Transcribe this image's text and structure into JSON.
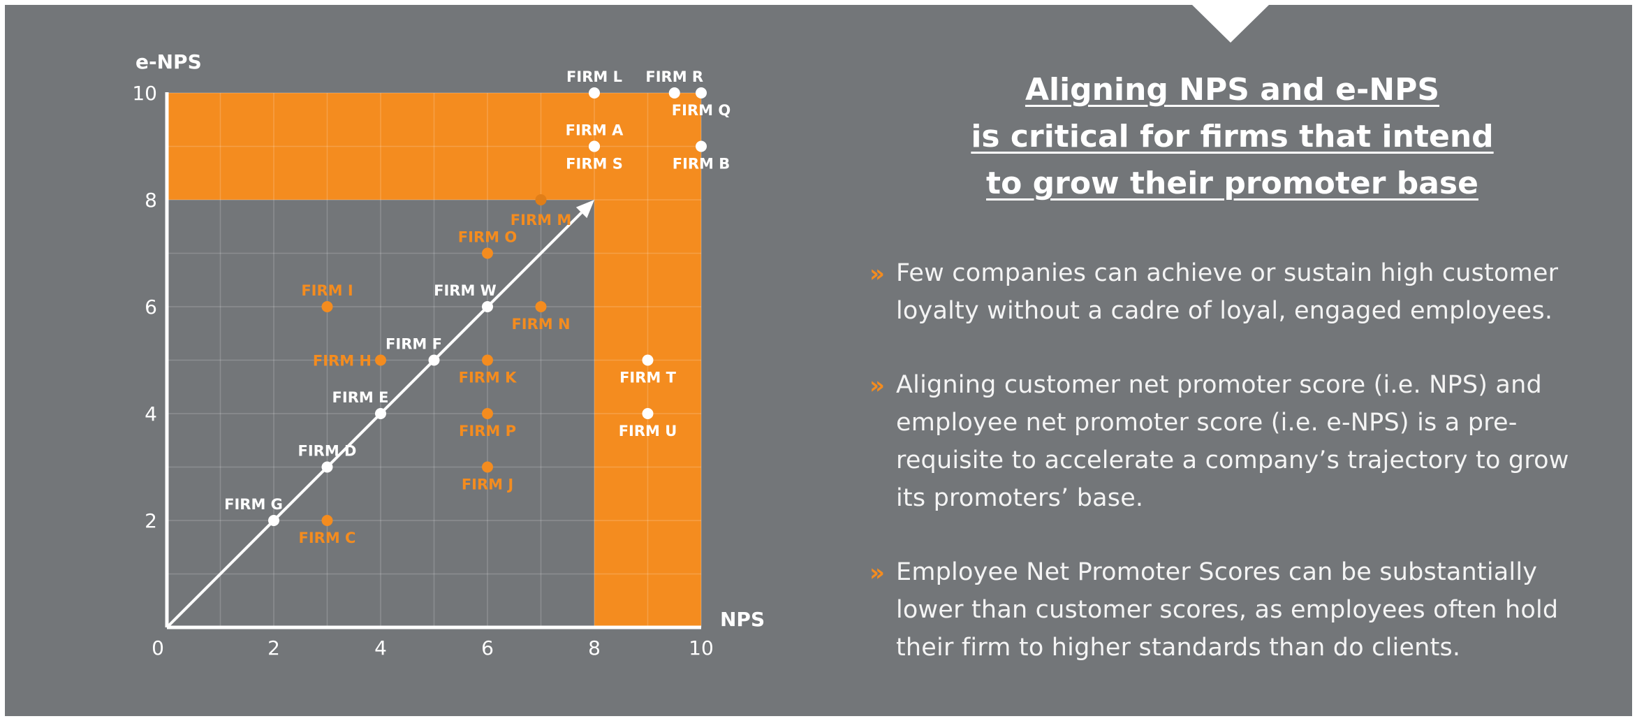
{
  "colors": {
    "background": "#737679",
    "accent": "#f48c1f",
    "point_aligned": "#ffffff",
    "point_misaligned": "#f48c1f"
  },
  "title": {
    "lines": [
      "Aligning NPS and e-NPS",
      "is critical for firms that intend",
      "to grow their promoter base"
    ]
  },
  "bullets": [
    {
      "icon": "double-chevron-right-icon",
      "text": "Few companies can achieve or sustain high customer loyalty without a cadre of loyal, engaged employees."
    },
    {
      "icon": "double-chevron-right-icon",
      "text": "Aligning customer net promoter score (i.e. NPS) and employee net promoter score (i.e. e-NPS) is a pre-requisite to accelerate a company’s trajectory to grow its promoters’ base."
    },
    {
      "icon": "double-chevron-right-icon",
      "text": "Employee Net Promoter Scores can be substantially lower than customer scores, as employees often hold their firm to higher standards than do clients."
    }
  ],
  "chart_data": {
    "type": "scatter",
    "xlabel": "NPS",
    "ylabel": "e-NPS",
    "xlim": [
      0,
      10
    ],
    "ylim": [
      0,
      10
    ],
    "x_ticks": [
      0,
      2,
      4,
      6,
      8,
      10
    ],
    "y_ticks": [
      2,
      4,
      6,
      8,
      10
    ],
    "origin_label": "0",
    "grid": true,
    "highlight_threshold": 8,
    "diagonal_arrow": {
      "from": [
        0,
        0
      ],
      "to": [
        8,
        8
      ]
    },
    "series": [
      {
        "color": "#ffffff",
        "points": [
          {
            "label": "FIRM G",
            "x": 2,
            "y": 2
          },
          {
            "label": "FIRM D",
            "x": 3,
            "y": 3
          },
          {
            "label": "FIRM E",
            "x": 4,
            "y": 4
          },
          {
            "label": "FIRM F",
            "x": 5,
            "y": 5
          },
          {
            "label": "FIRM W",
            "x": 6,
            "y": 6
          },
          {
            "label": "FIRM L",
            "x": 8,
            "y": 10
          },
          {
            "label": "FIRM R",
            "x": 9.5,
            "y": 10
          },
          {
            "label": "FIRM Q",
            "x": 10,
            "y": 10
          },
          {
            "label": "FIRM A",
            "x": 8,
            "y": 9
          },
          {
            "label": "FIRM S",
            "x": 8,
            "y": 9
          },
          {
            "label": "FIRM B",
            "x": 10,
            "y": 9
          },
          {
            "label": "FIRM T",
            "x": 9,
            "y": 5
          },
          {
            "label": "FIRM U",
            "x": 9,
            "y": 4
          }
        ]
      },
      {
        "color": "#f48c1f",
        "points": [
          {
            "label": "FIRM C",
            "x": 3,
            "y": 2
          },
          {
            "label": "FIRM H",
            "x": 4,
            "y": 5
          },
          {
            "label": "FIRM I",
            "x": 3,
            "y": 6
          },
          {
            "label": "FIRM O",
            "x": 6,
            "y": 7
          },
          {
            "label": "FIRM M",
            "x": 7,
            "y": 8
          },
          {
            "label": "FIRM N",
            "x": 7,
            "y": 6
          },
          {
            "label": "FIRM K",
            "x": 6,
            "y": 5
          },
          {
            "label": "FIRM P",
            "x": 6,
            "y": 4
          },
          {
            "label": "FIRM J",
            "x": 6,
            "y": 3
          }
        ]
      }
    ]
  }
}
